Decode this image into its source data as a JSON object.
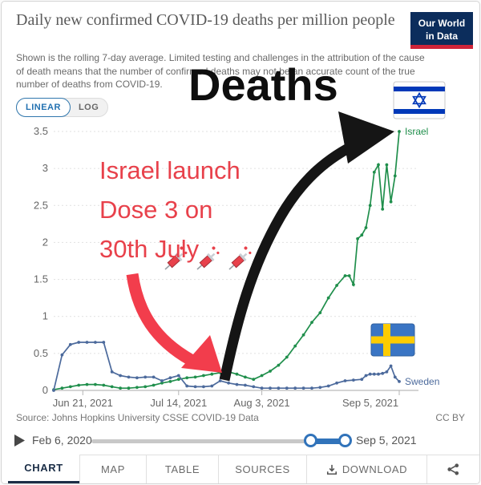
{
  "header": {
    "title": "Daily new confirmed COVID-19 deaths per million people",
    "subtitle": "Shown is the rolling 7-day average. Limited testing and challenges in the attribution of the cause of death means that the number of confirmed deaths may not be an accurate count of the true number of deaths from COVID-19.",
    "logo_line1": "Our World",
    "logo_line2": "in Data",
    "logo_bg": "#0c2d5c",
    "logo_stripe": "#cf2439"
  },
  "controls": {
    "linear": "LINEAR",
    "log": "LOG"
  },
  "annotations": {
    "deaths_label": "Deaths",
    "note_line1": "Israel launch",
    "note_line2": "Dose 3 on",
    "note_line3": "30th July",
    "note_color": "#e8414b",
    "red_arrow_color": "#f23d4c",
    "black_arrow_color": "#151515",
    "icons": [
      "israel-flag",
      "sweden-flag",
      "syringe",
      "syringe",
      "syringe"
    ]
  },
  "chart_data": {
    "type": "line",
    "title": "Daily new confirmed COVID-19 deaths per million people",
    "ylabel": "",
    "xlabel": "",
    "ylim": [
      0,
      3.5
    ],
    "y_ticks": [
      0,
      0.5,
      1,
      1.5,
      2,
      2.5,
      3,
      3.5
    ],
    "grid": true,
    "x_ticks": [
      {
        "label": "Jun 21, 2021",
        "day": 7
      },
      {
        "label": "Jul 14, 2021",
        "day": 30
      },
      {
        "label": "Aug 3, 2021",
        "day": 50
      },
      {
        "label": "Sep 5, 2021",
        "day": 83
      }
    ],
    "x_range_days": 83,
    "series": [
      {
        "name": "Israel",
        "color": "#208f4c",
        "days": [
          0,
          2,
          4,
          6,
          8,
          10,
          12,
          14,
          16,
          18,
          20,
          22,
          24,
          26,
          28,
          30,
          32,
          34,
          36,
          38,
          40,
          42,
          44,
          46,
          48,
          50,
          52,
          54,
          56,
          58,
          60,
          62,
          64,
          66,
          68,
          70,
          71,
          72,
          73,
          74,
          75,
          76,
          77,
          78,
          79,
          80,
          81,
          82,
          83
        ],
        "values": [
          0.01,
          0.03,
          0.05,
          0.07,
          0.08,
          0.08,
          0.07,
          0.05,
          0.03,
          0.03,
          0.04,
          0.05,
          0.07,
          0.1,
          0.12,
          0.15,
          0.17,
          0.18,
          0.2,
          0.22,
          0.24,
          0.25,
          0.22,
          0.18,
          0.15,
          0.2,
          0.26,
          0.34,
          0.45,
          0.6,
          0.75,
          0.92,
          1.05,
          1.25,
          1.42,
          1.55,
          1.55,
          1.43,
          2.05,
          2.1,
          2.2,
          2.5,
          2.95,
          3.05,
          2.45,
          3.05,
          2.55,
          2.9,
          3.5
        ]
      },
      {
        "name": "Sweden",
        "color": "#4c6a9c",
        "days": [
          0,
          2,
          4,
          6,
          8,
          10,
          12,
          14,
          16,
          18,
          20,
          22,
          24,
          26,
          28,
          30,
          32,
          34,
          36,
          38,
          40,
          42,
          44,
          46,
          48,
          50,
          52,
          54,
          56,
          58,
          60,
          62,
          64,
          66,
          68,
          70,
          72,
          74,
          75,
          76,
          77,
          78,
          79,
          80,
          81,
          82,
          83
        ],
        "values": [
          0.0,
          0.48,
          0.62,
          0.65,
          0.65,
          0.65,
          0.65,
          0.25,
          0.2,
          0.18,
          0.17,
          0.18,
          0.18,
          0.13,
          0.17,
          0.2,
          0.06,
          0.05,
          0.05,
          0.06,
          0.13,
          0.1,
          0.08,
          0.07,
          0.05,
          0.03,
          0.03,
          0.03,
          0.03,
          0.03,
          0.03,
          0.03,
          0.04,
          0.06,
          0.1,
          0.13,
          0.14,
          0.15,
          0.2,
          0.22,
          0.22,
          0.22,
          0.23,
          0.25,
          0.33,
          0.18,
          0.12
        ]
      }
    ]
  },
  "footer": {
    "source": "Source: Johns Hopkins University CSSE COVID-19 Data",
    "license": "CC BY",
    "timeline_start": "Feb 6, 2020",
    "timeline_end": "Sep 5, 2021",
    "tabs": [
      {
        "label": "CHART",
        "active": true
      },
      {
        "label": "MAP",
        "active": false
      },
      {
        "label": "TABLE",
        "active": false
      },
      {
        "label": "SOURCES",
        "active": false
      },
      {
        "label": "DOWNLOAD",
        "active": false
      }
    ]
  }
}
